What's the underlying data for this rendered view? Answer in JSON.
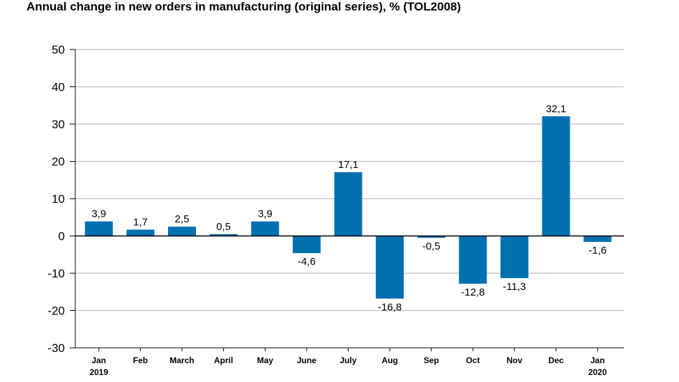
{
  "title": "Annual change in new orders in manufacturing (original series), % (TOL2008)",
  "colors": {
    "bar": "#0070b0",
    "grid": "#c8c8c8",
    "axis": "#000000"
  },
  "chart_data": {
    "type": "bar",
    "title": "Annual change in new orders in manufacturing (original series), % (TOL2008)",
    "categories": [
      [
        "Jan",
        "2019"
      ],
      [
        "Feb"
      ],
      [
        "March"
      ],
      [
        "April"
      ],
      [
        "May"
      ],
      [
        "June"
      ],
      [
        "July"
      ],
      [
        "Aug"
      ],
      [
        "Sep"
      ],
      [
        "Oct"
      ],
      [
        "Nov"
      ],
      [
        "Dec"
      ],
      [
        "Jan",
        "2020"
      ]
    ],
    "values": [
      3.9,
      1.7,
      2.5,
      0.5,
      3.9,
      -4.6,
      17.1,
      -16.8,
      -0.5,
      -12.8,
      -11.3,
      32.1,
      -1.6
    ],
    "value_labels": [
      "3,9",
      "1,7",
      "2,5",
      "0,5",
      "3,9",
      "-4,6",
      "17,1",
      "-16,8",
      "-0,5",
      "-12,8",
      "-11,3",
      "32,1",
      "-1,6"
    ],
    "y_ticks": [
      50,
      40,
      30,
      20,
      10,
      0,
      -10,
      -20,
      -30
    ],
    "y_tick_labels": [
      "50",
      "40",
      "30",
      "20",
      "10",
      "0",
      "-10",
      "-20",
      "-30"
    ],
    "ylim": [
      -30,
      50
    ],
    "grid": true,
    "xlabel": "",
    "ylabel": ""
  }
}
